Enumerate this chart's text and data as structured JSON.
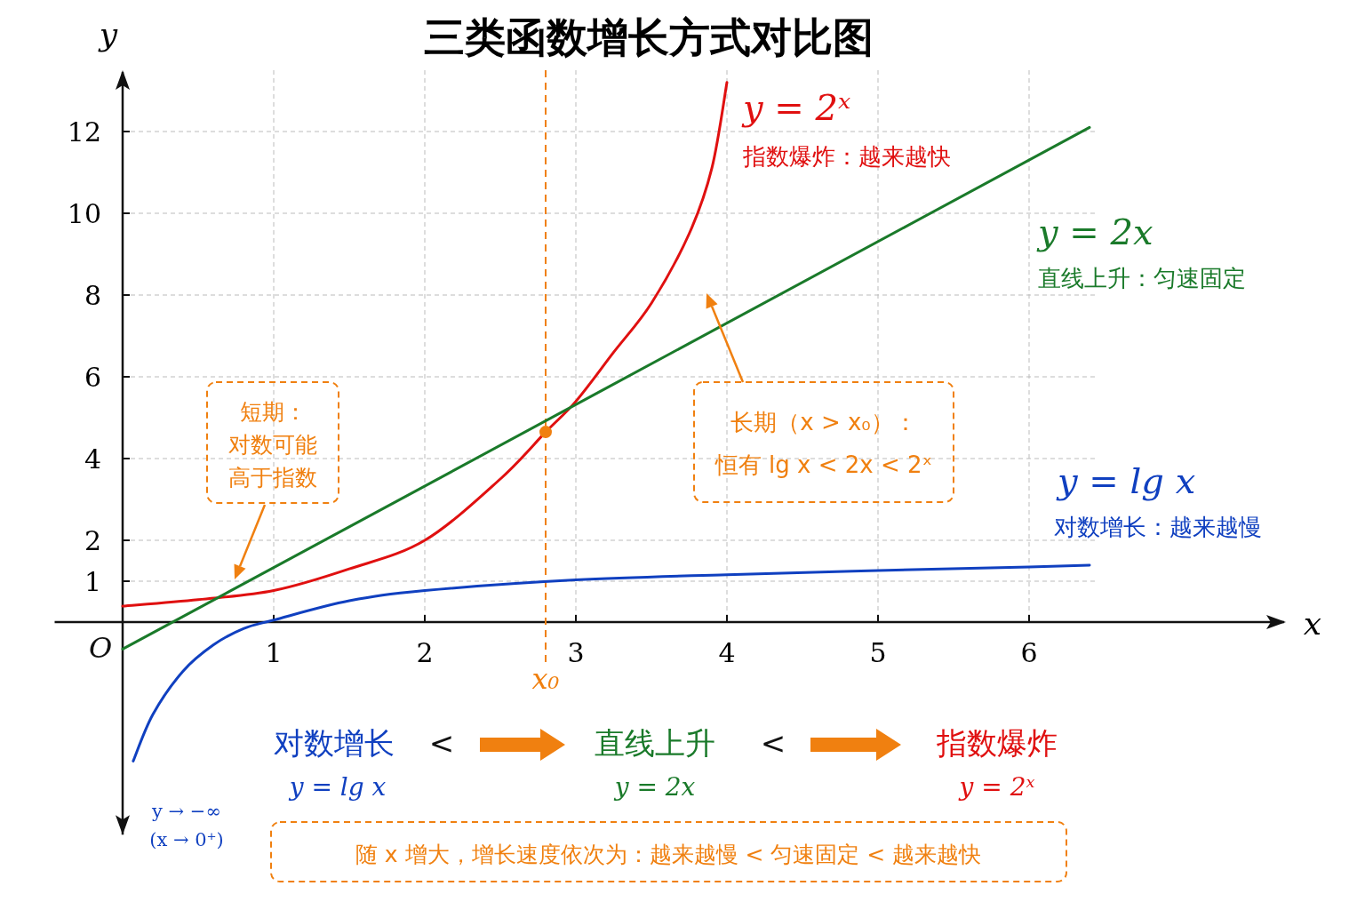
{
  "chart_data": {
    "type": "line",
    "title": "三类函数增长方式对比图",
    "xlabel": "x",
    "ylabel": "y",
    "xlim": [
      -0.45,
      7.7
    ],
    "ylim": [
      -5.2,
      13.5
    ],
    "xticks": [
      1,
      2,
      3,
      4,
      5,
      6
    ],
    "yticks": [
      1,
      2,
      4,
      6,
      8,
      10,
      12
    ],
    "grid": true,
    "marker": "none",
    "line_style": "solid",
    "series": [
      {
        "name": "y = 2ˣ",
        "color": "#e01010",
        "x": [
          0,
          0.5,
          1,
          1.5,
          2,
          2.5,
          2.8,
          3,
          3.25,
          3.5,
          3.75,
          3.9,
          4.0
        ],
        "values": [
          0.39,
          0.55,
          0.77,
          1.3,
          2.0,
          3.5,
          4.65,
          5.4,
          6.6,
          7.8,
          9.5,
          11.1,
          13.2
        ]
      },
      {
        "name": "y = 2x",
        "color": "#1a7a2a",
        "x": [
          0,
          6.4
        ],
        "values": [
          -0.66,
          12.1
        ]
      },
      {
        "name": "y = lg x",
        "color": "#1040c0",
        "x": [
          0.07,
          0.2,
          0.4,
          0.6,
          0.8,
          1,
          1.5,
          2,
          3,
          4,
          5,
          6,
          6.4
        ],
        "values": [
          -3.4,
          -2.26,
          -1.2,
          -0.56,
          -0.16,
          0.05,
          0.52,
          0.77,
          1.03,
          1.16,
          1.26,
          1.35,
          1.39
        ]
      },
      {
        "type": "scatter",
        "marker": "circle",
        "color": "#f08010",
        "x": [
          2.8
        ],
        "values": [
          4.65
        ]
      }
    ],
    "ref_lines": [
      {
        "axis": "x",
        "value": 2.8,
        "label": "x₀",
        "color": "#f08010",
        "line_style": "dashed"
      }
    ],
    "annotations": [
      "指数爆炸：越来越快",
      "直线上升：匀速固定",
      "对数增长：越来越慢",
      "短期：",
      "对数可能",
      "高于指数",
      "长期（x > x₀）：",
      "恒有 lg x < 2x < 2ˣ",
      "O",
      "y → −∞",
      "(x → 0⁺)",
      "对数增长",
      "y = lg x",
      "<",
      "直线上升",
      "y = 2x",
      "<",
      "指数爆炸",
      "y = 2ˣ",
      "随 x 增大，增长速度依次为：越来越慢 < 匀速固定 < 越来越快"
    ]
  }
}
